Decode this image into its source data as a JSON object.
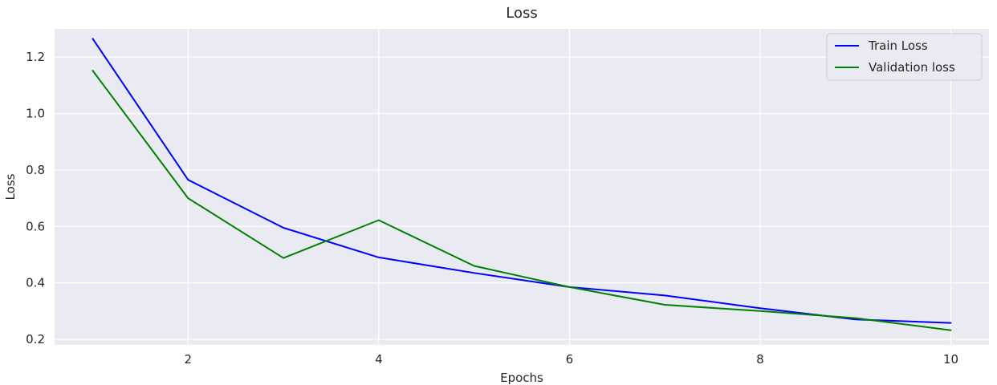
{
  "chart_data": {
    "type": "line",
    "title": "Loss",
    "xlabel": "Epochs",
    "ylabel": "Loss",
    "xlim": [
      0.6,
      10.4
    ],
    "ylim": [
      0.18,
      1.3
    ],
    "xticks": [
      2,
      4,
      6,
      8,
      10
    ],
    "yticks": [
      0.2,
      0.4,
      0.6,
      0.8,
      1.0,
      1.2
    ],
    "ytick_labels": [
      "0.2",
      "0.4",
      "0.6",
      "0.8",
      "1.0",
      "1.2"
    ],
    "grid": true,
    "legend_position": "top-right",
    "x": [
      1,
      2,
      3,
      4,
      5,
      6,
      7,
      8,
      9,
      10
    ],
    "series": [
      {
        "name": "Train Loss",
        "color": "#0000ff",
        "values": [
          1.265,
          0.765,
          0.595,
          0.49,
          0.435,
          0.385,
          0.355,
          0.31,
          0.27,
          0.258
        ]
      },
      {
        "name": "Validation loss",
        "color": "#008000",
        "values": [
          1.152,
          0.7,
          0.488,
          0.622,
          0.46,
          0.385,
          0.322,
          0.3,
          0.275,
          0.232
        ]
      }
    ],
    "background_color": "#eaeaf2",
    "grid_color": "#ffffff"
  }
}
